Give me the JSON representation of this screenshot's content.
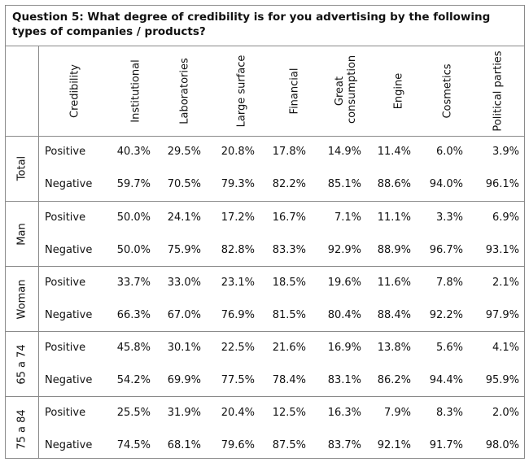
{
  "title": "Question 5: What degree of credibility is for you advertising by the following types of companies / products?",
  "header": {
    "credibility": "Credibility",
    "columns": [
      "Institutional",
      "Laboratories",
      "Large surface",
      "Financial",
      "Great consumption",
      "Engine",
      "Cosmetics",
      "Political parties"
    ]
  },
  "groups": [
    {
      "label": "Total",
      "rows": [
        {
          "label": "Positive",
          "values": [
            "40.3%",
            "29.5%",
            "20.8%",
            "17.8%",
            "14.9%",
            "11.4%",
            "6.0%",
            "3.9%"
          ]
        },
        {
          "label": "Negative",
          "values": [
            "59.7%",
            "70.5%",
            "79.3%",
            "82.2%",
            "85.1%",
            "88.6%",
            "94.0%",
            "96.1%"
          ]
        }
      ]
    },
    {
      "label": "Man",
      "rows": [
        {
          "label": "Positive",
          "values": [
            "50.0%",
            "24.1%",
            "17.2%",
            "16.7%",
            "7.1%",
            "11.1%",
            "3.3%",
            "6.9%"
          ]
        },
        {
          "label": "Negative",
          "values": [
            "50.0%",
            "75.9%",
            "82.8%",
            "83.3%",
            "92.9%",
            "88.9%",
            "96.7%",
            "93.1%"
          ]
        }
      ]
    },
    {
      "label": "Woman",
      "rows": [
        {
          "label": "Positive",
          "values": [
            "33.7%",
            "33.0%",
            "23.1%",
            "18.5%",
            "19.6%",
            "11.6%",
            "7.8%",
            "2.1%"
          ]
        },
        {
          "label": "Negative",
          "values": [
            "66.3%",
            "67.0%",
            "76.9%",
            "81.5%",
            "80.4%",
            "88.4%",
            "92.2%",
            "97.9%"
          ]
        }
      ]
    },
    {
      "label": "65 a 74",
      "rows": [
        {
          "label": "Positive",
          "values": [
            "45.8%",
            "30.1%",
            "22.5%",
            "21.6%",
            "16.9%",
            "13.8%",
            "5.6%",
            "4.1%"
          ]
        },
        {
          "label": "Negative",
          "values": [
            "54.2%",
            "69.9%",
            "77.5%",
            "78.4%",
            "83.1%",
            "86.2%",
            "94.4%",
            "95.9%"
          ]
        }
      ]
    },
    {
      "label": "75 a 84",
      "rows": [
        {
          "label": "Positive",
          "values": [
            "25.5%",
            "31.9%",
            "20.4%",
            "12.5%",
            "16.3%",
            "7.9%",
            "8.3%",
            "2.0%"
          ]
        },
        {
          "label": "Negative",
          "values": [
            "74.5%",
            "68.1%",
            "79.6%",
            "87.5%",
            "83.7%",
            "92.1%",
            "91.7%",
            "98.0%"
          ]
        }
      ]
    }
  ]
}
